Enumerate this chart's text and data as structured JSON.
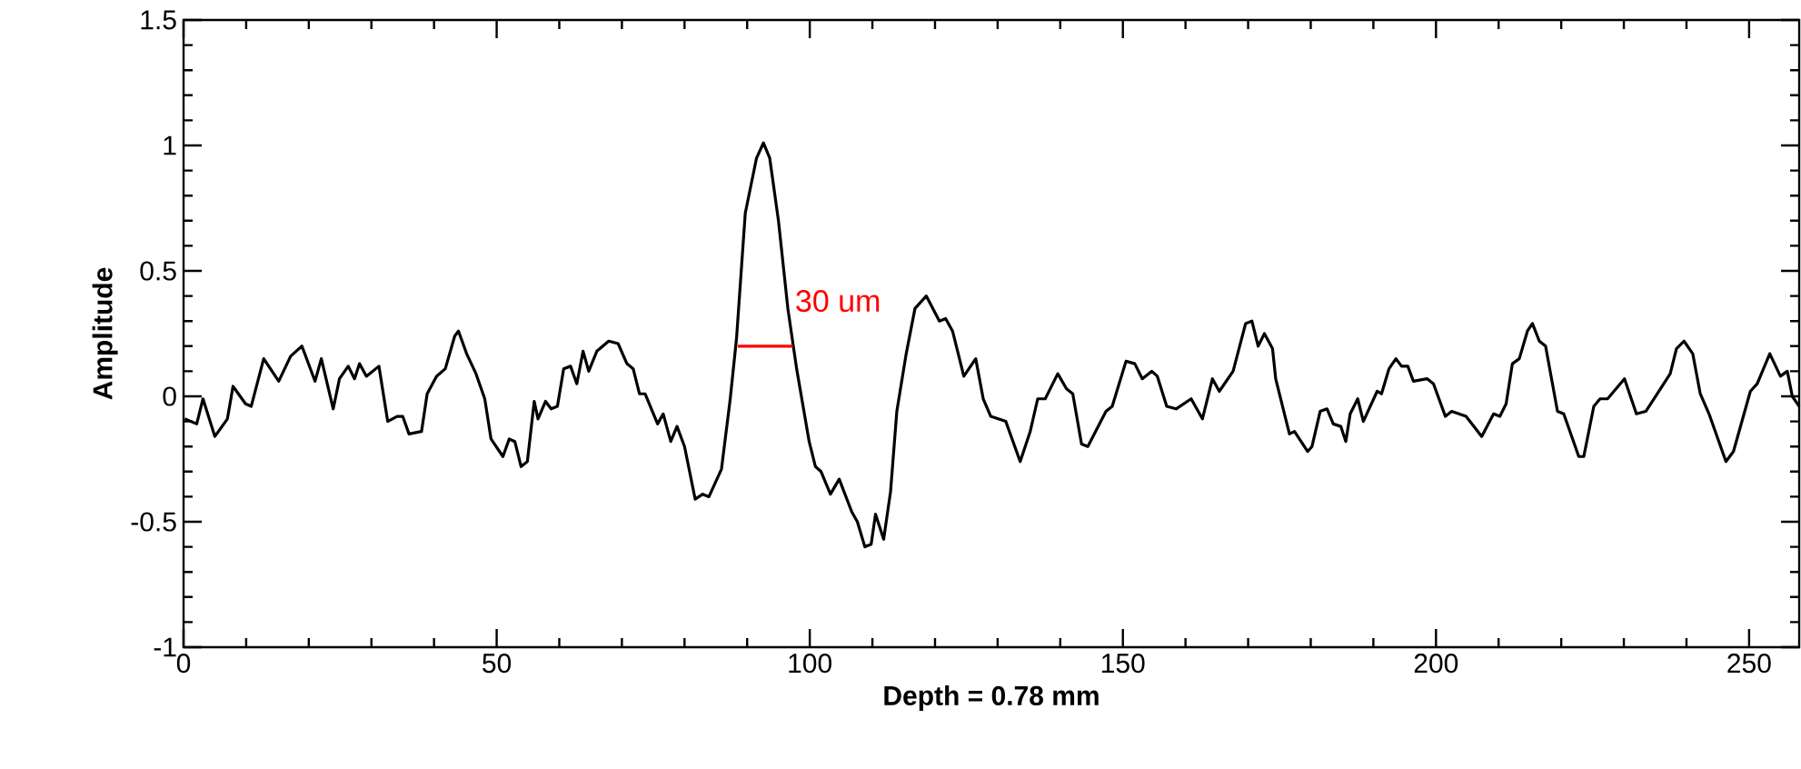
{
  "chart_data": {
    "type": "line",
    "xlabel": "Depth = 0.78 mm",
    "ylabel": "Amplitude",
    "xlim": [
      0,
      258
    ],
    "ylim": [
      -1,
      1.5
    ],
    "xticks": [
      0,
      50,
      100,
      150,
      200,
      250
    ],
    "yticks": [
      -1,
      -0.5,
      0,
      0.5,
      1,
      1.5
    ],
    "annotations": [
      {
        "text": "30 um",
        "x": 97.3,
        "y": 0.38
      }
    ],
    "series": [
      {
        "color": "#000000",
        "x": [
          0.2,
          2.1,
          3.1,
          5.0,
          7.0,
          7.9,
          9.9,
          10.8,
          12.8,
          15.2,
          17.1,
          18.9,
          21.0,
          22.0,
          23.9,
          24.9,
          26.3,
          27.3,
          28.1,
          29.2,
          31.2,
          32.6,
          34.1,
          35.0,
          36.0,
          38.0,
          38.9,
          40.4,
          41.8,
          43.3,
          43.9,
          45.2,
          46.7,
          48.1,
          49.1,
          51.0,
          52.0,
          52.9,
          53.9,
          54.9,
          56.0,
          56.6,
          57.8,
          58.7,
          59.7,
          60.7,
          61.8,
          62.8,
          63.8,
          64.7,
          66.0,
          67.9,
          69.4,
          70.8,
          71.8,
          72.8,
          73.7,
          75.7,
          76.6,
          77.8,
          78.8,
          80.0,
          81.7,
          82.9,
          83.9,
          85.9,
          87.3,
          88.3,
          89.7,
          91.5,
          92.6,
          93.6,
          95.0,
          96.5,
          97.9,
          99.9,
          100.9,
          101.8,
          103.3,
          104.7,
          106.7,
          107.6,
          108.8,
          109.8,
          110.5,
          111.8,
          112.9,
          113.9,
          115.4,
          116.8,
          118.6,
          120.7,
          121.7,
          122.8,
          124.6,
          126.5,
          127.7,
          128.9,
          131.3,
          133.6,
          135.2,
          136.4,
          137.6,
          139.6,
          141.0,
          142.0,
          143.4,
          144.4,
          147.3,
          148.3,
          150.5,
          151.9,
          153.1,
          154.6,
          155.5,
          157.0,
          158.5,
          160.9,
          162.7,
          164.3,
          165.4,
          167.6,
          169.6,
          170.6,
          171.6,
          172.6,
          173.9,
          174.4,
          175.4,
          176.6,
          177.4,
          179.5,
          180.2,
          181.5,
          182.6,
          183.6,
          184.8,
          185.6,
          186.3,
          187.5,
          188.4,
          190.6,
          191.3,
          192.5,
          193.6,
          194.5,
          195.5,
          196.4,
          198.6,
          199.6,
          201.5,
          202.5,
          204.8,
          207.3,
          209.2,
          210.2,
          211.2,
          212.2,
          213.3,
          214.6,
          215.4,
          216.5,
          217.5,
          219.4,
          220.4,
          222.8,
          223.6,
          225.2,
          226.2,
          227.4,
          230.1,
          232.0,
          233.5,
          235.6,
          237.4,
          238.4,
          239.6,
          241.0,
          242.2,
          243.6,
          246.3,
          247.5,
          250.2,
          251.3,
          253.3,
          255.0,
          256.1,
          256.9,
          258.0
        ],
        "values": [
          -0.09,
          -0.11,
          -0.01,
          -0.16,
          -0.09,
          0.04,
          -0.03,
          -0.04,
          0.15,
          0.06,
          0.16,
          0.2,
          0.06,
          0.15,
          -0.05,
          0.07,
          0.12,
          0.07,
          0.13,
          0.08,
          0.12,
          -0.1,
          -0.08,
          -0.08,
          -0.15,
          -0.14,
          0.01,
          0.08,
          0.11,
          0.24,
          0.26,
          0.17,
          0.09,
          -0.01,
          -0.17,
          -0.24,
          -0.17,
          -0.18,
          -0.28,
          -0.26,
          -0.02,
          -0.09,
          -0.02,
          -0.05,
          -0.04,
          0.11,
          0.12,
          0.05,
          0.18,
          0.1,
          0.18,
          0.22,
          0.21,
          0.13,
          0.11,
          0.01,
          0.01,
          -0.11,
          -0.07,
          -0.18,
          -0.12,
          -0.2,
          -0.41,
          -0.39,
          -0.4,
          -0.29,
          -0.01,
          0.23,
          0.73,
          0.95,
          1.01,
          0.95,
          0.7,
          0.35,
          0.11,
          -0.18,
          -0.28,
          -0.3,
          -0.39,
          -0.33,
          -0.46,
          -0.5,
          -0.6,
          -0.59,
          -0.47,
          -0.57,
          -0.38,
          -0.06,
          0.17,
          0.35,
          0.4,
          0.3,
          0.31,
          0.26,
          0.08,
          0.15,
          -0.01,
          -0.08,
          -0.1,
          -0.26,
          -0.14,
          -0.01,
          -0.01,
          0.09,
          0.03,
          0.01,
          -0.19,
          -0.2,
          -0.06,
          -0.04,
          0.14,
          0.13,
          0.07,
          0.1,
          0.08,
          -0.04,
          -0.05,
          -0.01,
          -0.09,
          0.07,
          0.02,
          0.1,
          0.29,
          0.3,
          0.2,
          0.25,
          0.19,
          0.07,
          -0.03,
          -0.15,
          -0.14,
          -0.22,
          -0.2,
          -0.06,
          -0.05,
          -0.11,
          -0.12,
          -0.18,
          -0.07,
          -0.01,
          -0.1,
          0.02,
          0.01,
          0.11,
          0.15,
          0.12,
          0.12,
          0.06,
          0.07,
          0.05,
          -0.08,
          -0.06,
          -0.08,
          -0.16,
          -0.07,
          -0.08,
          -0.03,
          0.13,
          0.15,
          0.26,
          0.29,
          0.22,
          0.2,
          -0.06,
          -0.07,
          -0.24,
          -0.24,
          -0.04,
          -0.01,
          -0.01,
          0.07,
          -0.07,
          -0.06,
          0.02,
          0.09,
          0.19,
          0.22,
          0.17,
          0.01,
          -0.07,
          -0.26,
          -0.22,
          0.02,
          0.05,
          0.17,
          0.08,
          0.1,
          0.0,
          -0.04
        ]
      },
      {
        "color": "#ff0000",
        "x": [
          88.5,
          97.3
        ],
        "values": [
          0.2,
          0.2
        ]
      }
    ]
  }
}
